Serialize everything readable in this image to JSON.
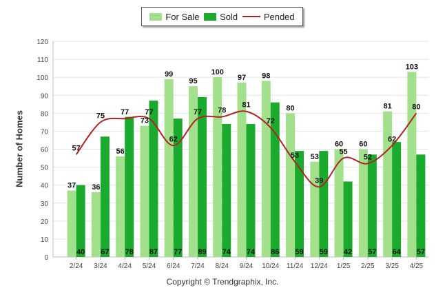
{
  "chart_data": {
    "type": "bar",
    "categories": [
      "2/24",
      "3/24",
      "4/24",
      "5/24",
      "6/24",
      "7/24",
      "8/24",
      "9/24",
      "10/24",
      "11/24",
      "12/24",
      "1/25",
      "2/25",
      "3/25",
      "4/25"
    ],
    "series": [
      {
        "name": "For Sale",
        "type": "bar",
        "color": "#a3e08c",
        "values": [
          37,
          36,
          56,
          73,
          99,
          95,
          100,
          97,
          98,
          80,
          53,
          60,
          60,
          81,
          103
        ]
      },
      {
        "name": "Sold",
        "type": "bar",
        "color": "#1aab2e",
        "values": [
          40,
          67,
          78,
          87,
          77,
          89,
          74,
          74,
          86,
          59,
          59,
          42,
          57,
          64,
          57
        ]
      },
      {
        "name": "Pended",
        "type": "line",
        "color": "#b22222",
        "values": [
          57,
          75,
          77,
          77,
          62,
          77,
          78,
          81,
          72,
          53,
          39,
          55,
          52,
          62,
          80
        ]
      }
    ],
    "ylabel": "Number of Homes",
    "xlabel": "",
    "ylim": [
      0,
      120
    ],
    "yticks": [
      0,
      10,
      20,
      30,
      40,
      50,
      60,
      70,
      80,
      90,
      100,
      110,
      120
    ],
    "grid": true,
    "legend_position": "top-center"
  },
  "legend": {
    "items": [
      "For Sale",
      "Sold",
      "Pended"
    ]
  },
  "copyright": "Copyright © Trendgraphix, Inc."
}
